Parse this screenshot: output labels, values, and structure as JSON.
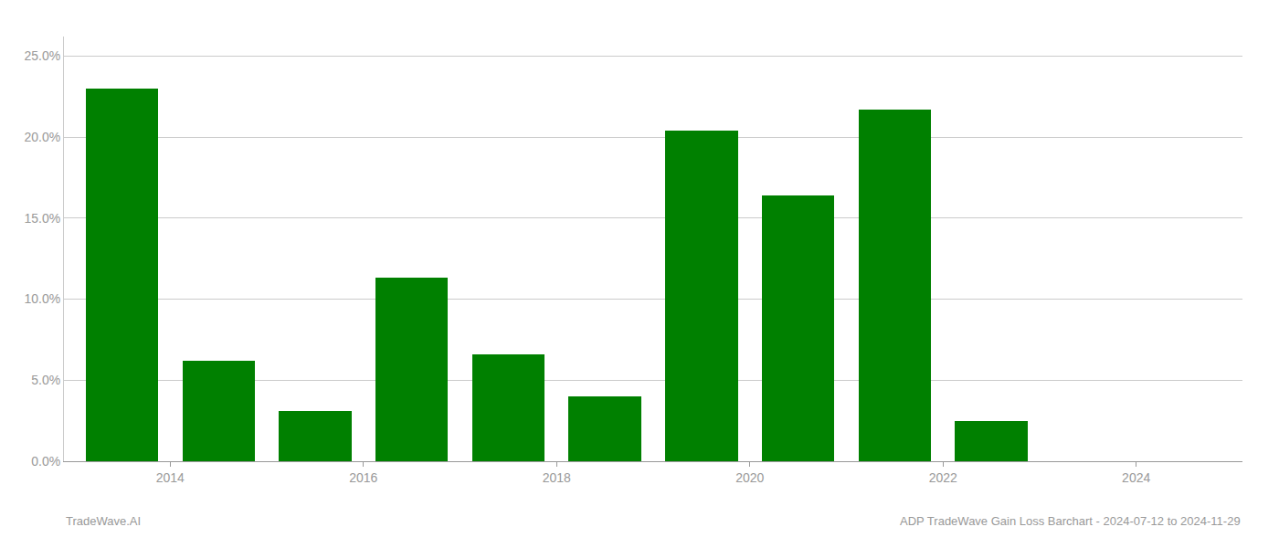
{
  "chart_data": {
    "type": "bar",
    "x": [
      2013,
      2014,
      2015,
      2016,
      2017,
      2018,
      2019,
      2020,
      2021,
      2022,
      2023
    ],
    "values": [
      0.23,
      0.062,
      0.031,
      0.113,
      0.066,
      0.04,
      0.204,
      0.164,
      0.217,
      0.025,
      0.0
    ],
    "color": "#008000",
    "xlim": [
      2012.9,
      2025.1
    ],
    "xticks": [
      2014,
      2016,
      2018,
      2020,
      2022,
      2024
    ],
    "ylim": [
      0,
      0.262
    ],
    "yticks": [
      {
        "value": 0.0,
        "label": "0.0%"
      },
      {
        "value": 0.05,
        "label": "5.0%"
      },
      {
        "value": 0.1,
        "label": "10.0%"
      },
      {
        "value": 0.15,
        "label": "15.0%"
      },
      {
        "value": 0.2,
        "label": "20.0%"
      },
      {
        "value": 0.25,
        "label": "25.0%"
      }
    ],
    "grid": true,
    "annotations": [
      "TradeWave.AI",
      "ADP TradeWave Gain Loss Barchart - 2024-07-12 to 2024-11-29"
    ]
  }
}
